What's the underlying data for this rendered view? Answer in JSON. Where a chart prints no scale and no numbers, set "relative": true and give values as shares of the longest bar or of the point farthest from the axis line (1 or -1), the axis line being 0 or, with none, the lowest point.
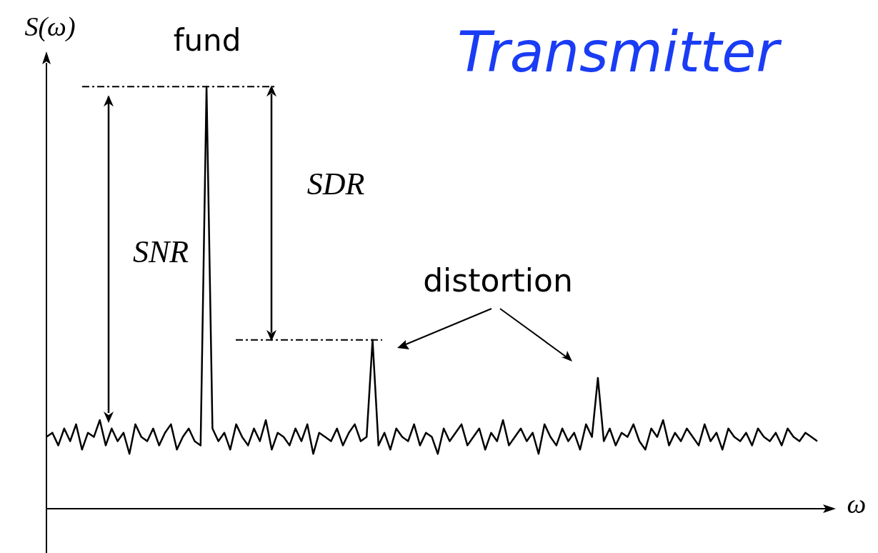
{
  "chart_data": {
    "type": "line",
    "title": "Transmitter",
    "xlabel": "ω",
    "ylabel": "S(ω)",
    "relative": true,
    "marker": "none",
    "categories": [
      null,
      null,
      null,
      null,
      null,
      null,
      null,
      null,
      null,
      null,
      null,
      null,
      null,
      null,
      null,
      null,
      null,
      null,
      null,
      null,
      null,
      null,
      null,
      null,
      null,
      null,
      null,
      null,
      null,
      null,
      null,
      null,
      null,
      null,
      null,
      null,
      null,
      null,
      null,
      null,
      null,
      null,
      null,
      null,
      null,
      null,
      null,
      null,
      null,
      null,
      null,
      null,
      null,
      null,
      null,
      null,
      null,
      null,
      null,
      null,
      null,
      null,
      null,
      null,
      null,
      null,
      null,
      null,
      null,
      null,
      null,
      null,
      null,
      null,
      null,
      null,
      null,
      null,
      null,
      null,
      null,
      null,
      null,
      null,
      null,
      null,
      null,
      null,
      null,
      null,
      null,
      null,
      null,
      null,
      null,
      null,
      null,
      null,
      null,
      null,
      null,
      null,
      null,
      null,
      null,
      null,
      null,
      null,
      null,
      null,
      null,
      null,
      null,
      null,
      null,
      null,
      null,
      null,
      null,
      null,
      null,
      null,
      null,
      null,
      null,
      null,
      null,
      null,
      null,
      null,
      null
    ],
    "series": [
      {
        "color": "#000000",
        "values": [
          0.17,
          0.18,
          0.15,
          0.19,
          0.16,
          0.2,
          0.14,
          0.18,
          0.17,
          0.21,
          0.15,
          0.19,
          0.16,
          0.18,
          0.13,
          0.2,
          0.17,
          0.16,
          0.19,
          0.15,
          0.18,
          0.2,
          0.14,
          0.17,
          0.19,
          0.16,
          0.15,
          1,
          0.19,
          0.16,
          0.18,
          0.14,
          0.2,
          0.17,
          0.15,
          0.19,
          0.16,
          0.21,
          0.14,
          0.18,
          0.17,
          0.15,
          0.19,
          0.16,
          0.2,
          0.13,
          0.18,
          0.17,
          0.16,
          0.19,
          0.15,
          0.18,
          0.2,
          0.16,
          0.17,
          0.4,
          0.15,
          0.18,
          0.14,
          0.19,
          0.17,
          0.16,
          0.2,
          0.15,
          0.18,
          0.17,
          0.13,
          0.19,
          0.16,
          0.18,
          0.2,
          0.15,
          0.17,
          0.19,
          0.14,
          0.18,
          0.16,
          0.21,
          0.15,
          0.17,
          0.19,
          0.16,
          0.18,
          0.13,
          0.2,
          0.17,
          0.15,
          0.19,
          0.16,
          0.18,
          0.14,
          0.2,
          0.17,
          0.31,
          0.16,
          0.19,
          0.15,
          0.18,
          0.17,
          0.2,
          0.16,
          0.14,
          0.19,
          0.17,
          0.21,
          0.15,
          0.18,
          0.16,
          0.19,
          0.17,
          0.15,
          0.2,
          0.16,
          0.18,
          0.14,
          0.19,
          0.17,
          0.16,
          0.18,
          0.15,
          0.19,
          0.17,
          0.16,
          0.18,
          0.15,
          0.19,
          0.17,
          0.16,
          0.18,
          0.17,
          0.16
        ]
      }
    ],
    "ref_lines": [
      {
        "axis": "y",
        "value": 1,
        "line_style": "dashed",
        "color": "#000000"
      },
      {
        "axis": "y",
        "value": 0.4,
        "line_style": "dashed",
        "color": "#000000"
      }
    ],
    "annotations": [
      "fund",
      "SDR",
      "SNR",
      "distortion"
    ]
  }
}
